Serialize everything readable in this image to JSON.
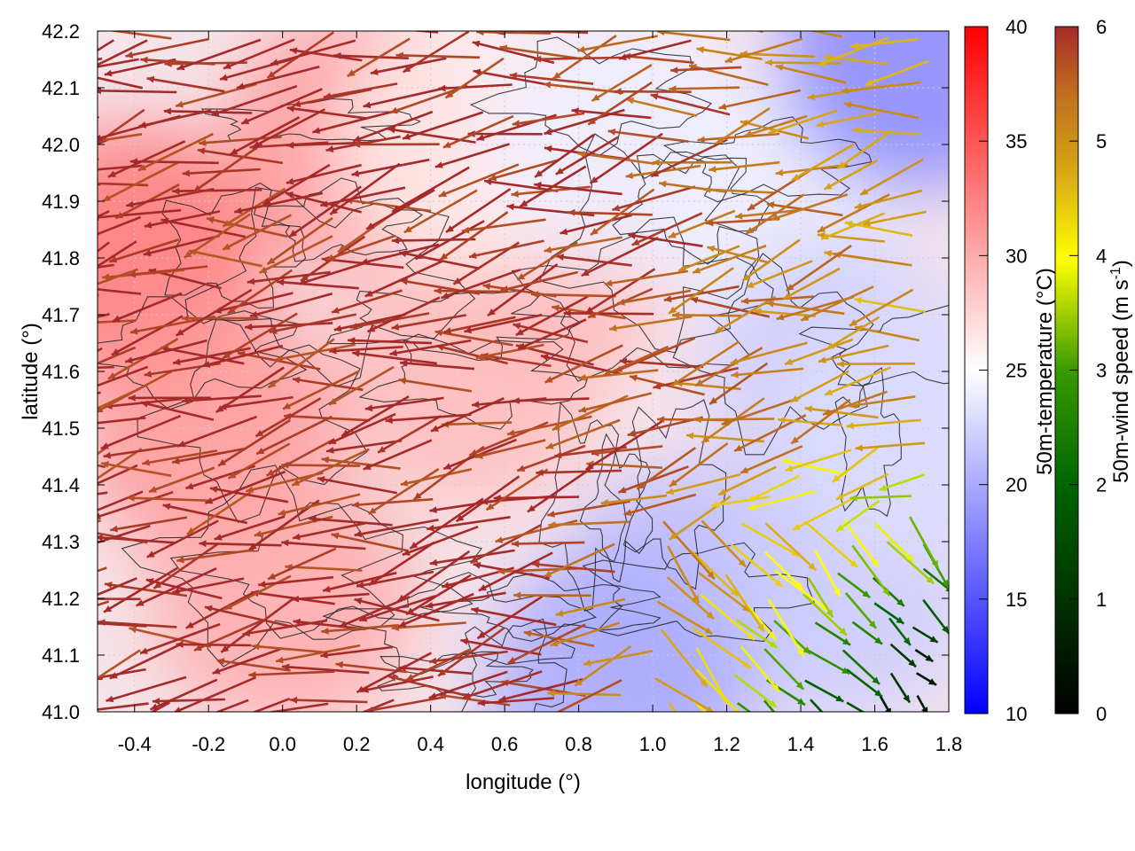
{
  "chart_data": {
    "type": "heatmap",
    "title": "",
    "xlabel": "longitude (°)",
    "ylabel": "latitude (°)",
    "xlim": [
      -0.5,
      1.8
    ],
    "ylim": [
      41.0,
      42.2
    ],
    "xticks": [
      "-0.4",
      "-0.2",
      "0.0",
      "0.2",
      "0.4",
      "0.6",
      "0.8",
      "1.0",
      "1.2",
      "1.4",
      "1.6",
      "1.8"
    ],
    "xtick_values": [
      -0.4,
      -0.2,
      0.0,
      0.2,
      0.4,
      0.6,
      0.8,
      1.0,
      1.2,
      1.4,
      1.6,
      1.8
    ],
    "yticks": [
      "41.0",
      "41.1",
      "41.2",
      "41.3",
      "41.4",
      "41.5",
      "41.6",
      "41.7",
      "41.8",
      "41.9",
      "42.0",
      "42.1",
      "42.2"
    ],
    "ytick_values": [
      41.0,
      41.1,
      41.2,
      41.3,
      41.4,
      41.5,
      41.6,
      41.7,
      41.8,
      41.9,
      42.0,
      42.1,
      42.2
    ],
    "grid": true,
    "temperature_colorbar": {
      "label": "50m-temperature (°C)",
      "range": [
        10,
        40
      ],
      "ticks": [
        "10",
        "15",
        "20",
        "25",
        "30",
        "35",
        "40"
      ],
      "tick_values": [
        10,
        15,
        20,
        25,
        30,
        35,
        40
      ],
      "colors": {
        "low": "#0000ff",
        "mid": "#ffffff",
        "high": "#ff0000"
      }
    },
    "wind_colorbar": {
      "label_main": "50m-wind speed (m s",
      "label_sup": "-1",
      "label_end": ")",
      "range": [
        0,
        6
      ],
      "ticks": [
        "0",
        "1",
        "2",
        "3",
        "4",
        "5",
        "6"
      ],
      "tick_values": [
        0,
        1,
        2,
        3,
        4,
        5,
        6
      ],
      "colors": [
        "#000000",
        "#006400",
        "#3a9a00",
        "#ffff00",
        "#d4a017",
        "#c07020",
        "#a52a2a"
      ]
    },
    "temperature_regions": [
      {
        "lon": -0.4,
        "lat": 41.8,
        "temp": 33
      },
      {
        "lon": -0.2,
        "lat": 41.5,
        "temp": 31
      },
      {
        "lon": 0.0,
        "lat": 41.2,
        "temp": 30
      },
      {
        "lon": 0.2,
        "lat": 42.0,
        "temp": 31
      },
      {
        "lon": 0.5,
        "lat": 41.6,
        "temp": 29
      },
      {
        "lon": 0.7,
        "lat": 41.8,
        "temp": 29
      },
      {
        "lon": 0.5,
        "lat": 42.0,
        "temp": 26
      },
      {
        "lon": 0.9,
        "lat": 42.0,
        "temp": 24
      },
      {
        "lon": 1.3,
        "lat": 41.9,
        "temp": 24
      },
      {
        "lon": 1.5,
        "lat": 41.6,
        "temp": 22
      },
      {
        "lon": 1.1,
        "lat": 41.2,
        "temp": 21
      },
      {
        "lon": 1.5,
        "lat": 41.2,
        "temp": 22
      },
      {
        "lon": 0.9,
        "lat": 41.05,
        "temp": 20
      },
      {
        "lon": 1.7,
        "lat": 42.15,
        "temp": 18
      },
      {
        "lon": 1.7,
        "lat": 41.5,
        "temp": 23
      }
    ]
  }
}
